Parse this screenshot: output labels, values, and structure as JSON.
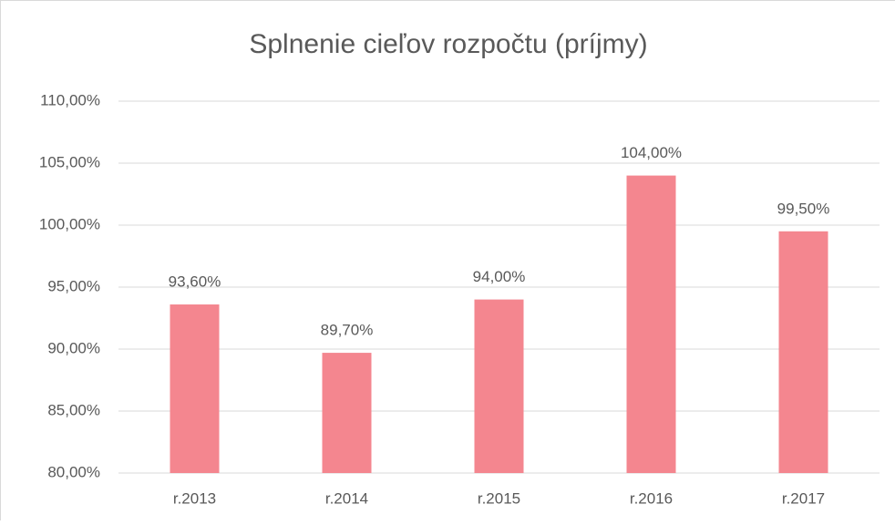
{
  "chart_data": {
    "type": "bar",
    "title": "Splnenie cieľov rozpočtu (príjmy)",
    "categories": [
      "r.2013",
      "r.2014",
      "r.2015",
      "r.2016",
      "r.2017"
    ],
    "values": [
      93.6,
      89.7,
      94.0,
      104.0,
      99.5
    ],
    "value_labels": [
      "93,60%",
      "89,70%",
      "94,00%",
      "104,00%",
      "99,50%"
    ],
    "color": "#f4868f",
    "ylim": [
      80,
      110
    ],
    "yticks": [
      {
        "value": 80,
        "label": "80,00%"
      },
      {
        "value": 85,
        "label": "85,00%"
      },
      {
        "value": 90,
        "label": "90,00%"
      },
      {
        "value": 95,
        "label": "95,00%"
      },
      {
        "value": 100,
        "label": "100,00%"
      },
      {
        "value": 105,
        "label": "105,00%"
      },
      {
        "value": 110,
        "label": "110,00%"
      }
    ],
    "grid": true
  }
}
